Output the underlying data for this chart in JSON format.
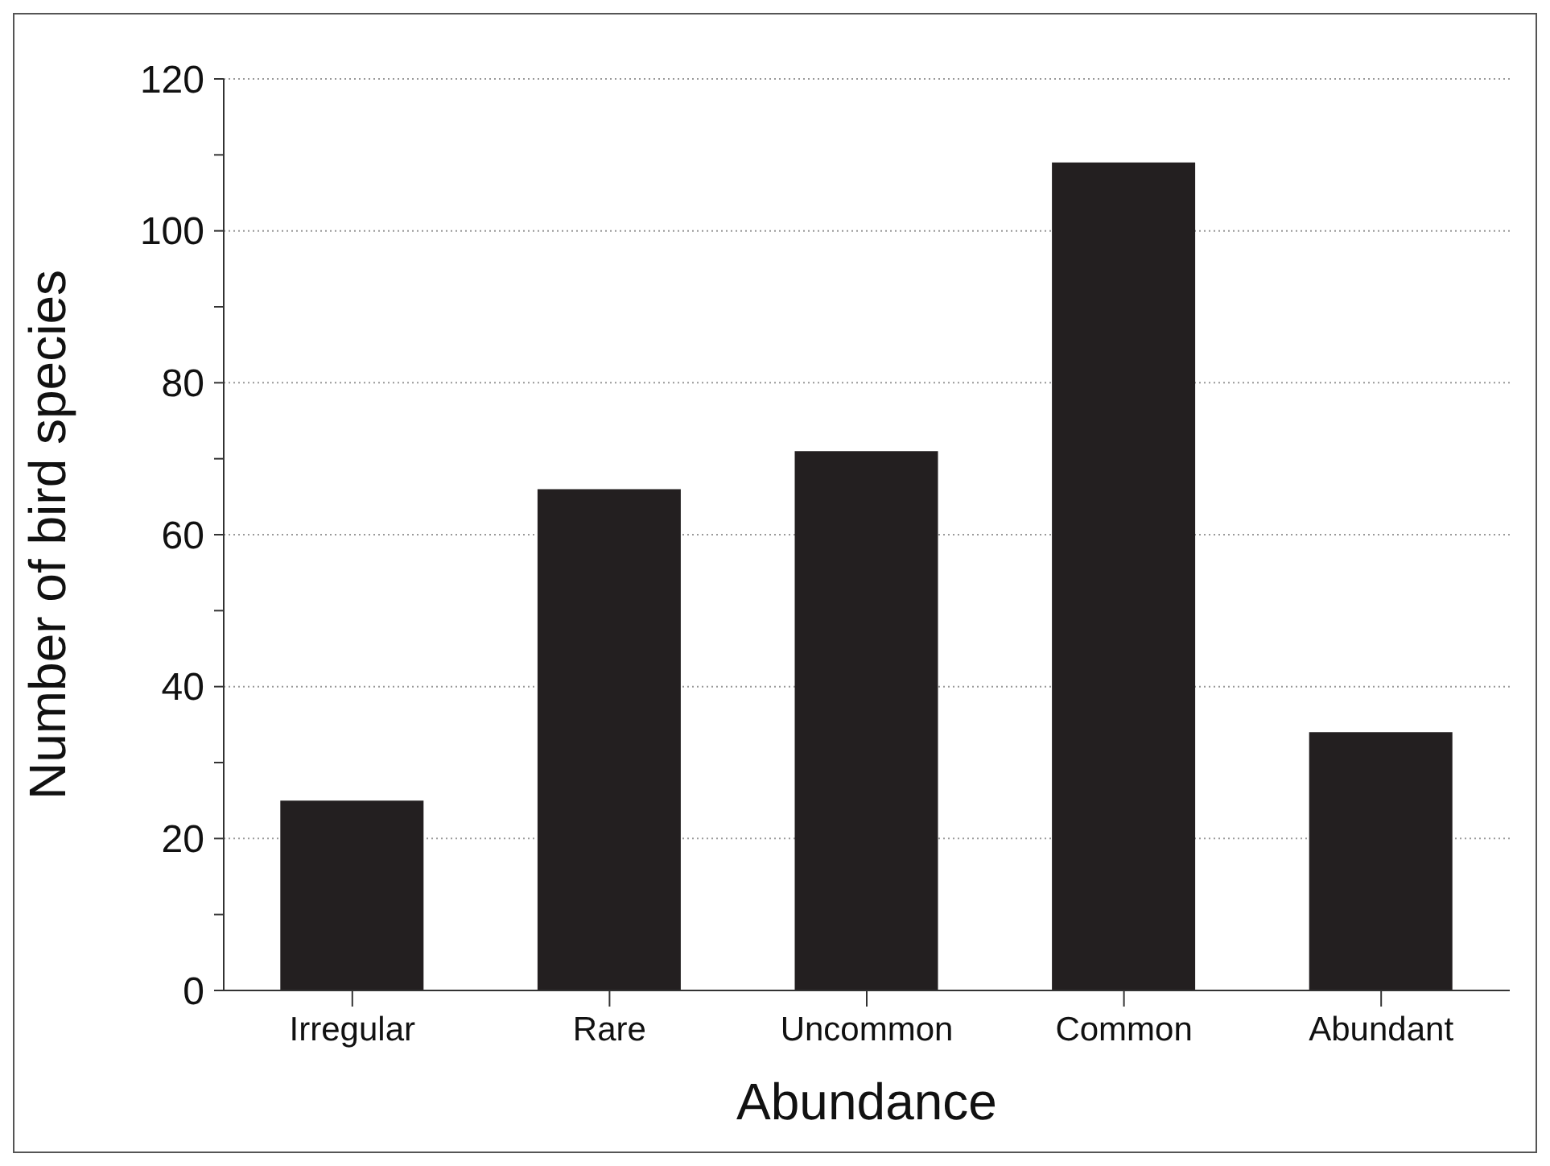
{
  "chart_data": {
    "type": "bar",
    "xlabel": "Abundance",
    "ylabel": "Number of bird species",
    "categories": [
      "Irregular",
      "Rare",
      "Uncommon",
      "Common",
      "Abundant"
    ],
    "values": [
      25,
      66,
      71,
      109,
      34
    ],
    "color": "#231f20",
    "ylim": [
      0,
      120
    ],
    "yticks": [
      0,
      {
        "value": 10,
        "label": null
      },
      20,
      {
        "value": 30,
        "label": null
      },
      40,
      {
        "value": 50,
        "label": null
      },
      60,
      {
        "value": 70,
        "label": null
      },
      80,
      {
        "value": 90,
        "label": null
      },
      100,
      {
        "value": 110,
        "label": null
      },
      120
    ],
    "grid": "y",
    "legend": false
  }
}
